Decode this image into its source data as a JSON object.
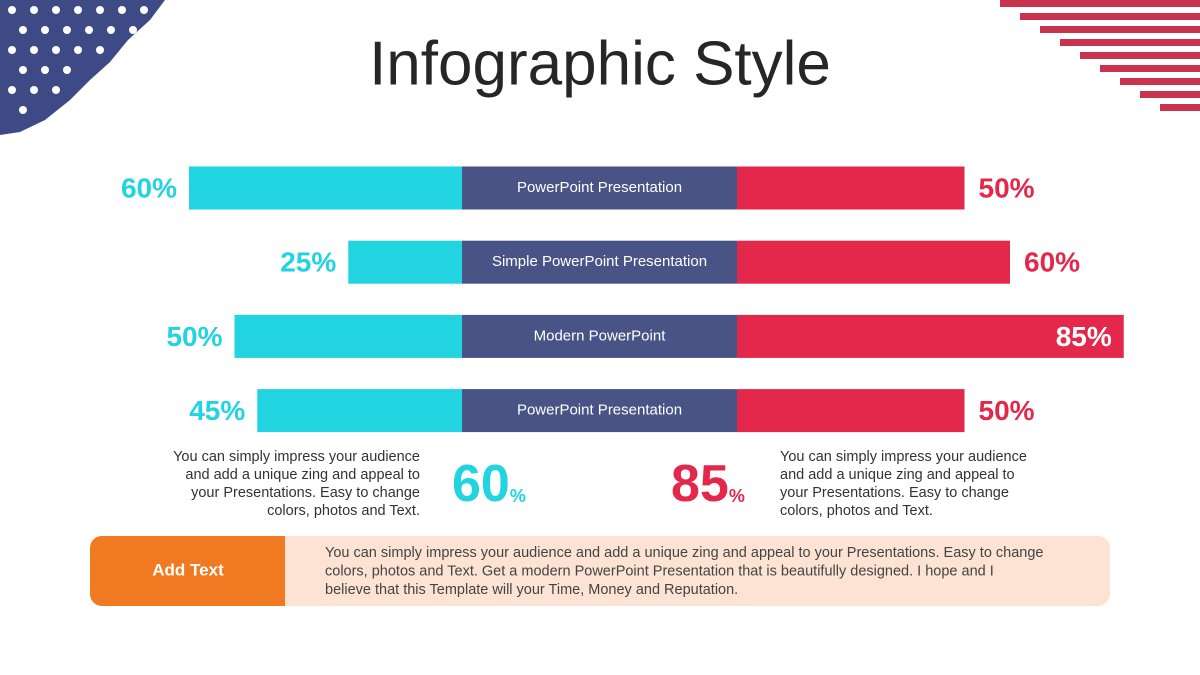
{
  "title": "Infographic Style",
  "chart_data": {
    "type": "butterfly",
    "categories": [
      "PowerPoint Presentation",
      "Simple PowerPoint Presentation",
      "Modern PowerPoint",
      "PowerPoint Presentation"
    ],
    "series": [
      {
        "color": "#22d3e0",
        "values": [
          60,
          25,
          50,
          45
        ],
        "value_labels": [
          "60%",
          "25%",
          "50%",
          "45%"
        ]
      },
      {
        "color": "#e4284b",
        "values": [
          50,
          60,
          85,
          50
        ],
        "value_labels": [
          "50%",
          "60%",
          "85%",
          "50%"
        ]
      }
    ],
    "center_color": "#4a5385"
  },
  "left_note": [
    "You can simply impress your audience",
    "and add a unique zing and appeal to",
    "your Presentations. Easy to change",
    "colors, photos and Text."
  ],
  "right_note": [
    "You can simply impress your audience",
    "and add a unique zing and appeal to",
    "your Presentations. Easy to change",
    "colors, photos and Text."
  ],
  "stats": [
    {
      "number": "60",
      "unit": "%",
      "color": "#22d3e0"
    },
    {
      "number": "85",
      "unit": "%",
      "color": "#e4284b"
    }
  ],
  "callout": {
    "label": "Add Text",
    "lines": [
      "You can simply impress your audience and add a unique zing and appeal to your Presentations. Easy to change",
      "colors, photos and Text.  Get a modern PowerPoint  Presentation that is beautifully designed. I hope and I",
      "believe that this Template will your Time, Money and Reputation."
    ]
  }
}
